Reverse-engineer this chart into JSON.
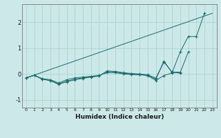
{
  "xlabel": "Humidex (Indice chaleur)",
  "bg_color": "#cce8e8",
  "line_color": "#1a6b6b",
  "grid_color": "#aad4d4",
  "xlim": [
    -0.5,
    23.5
  ],
  "ylim": [
    -1.3,
    2.7
  ],
  "xticks": [
    0,
    1,
    2,
    3,
    4,
    5,
    6,
    7,
    8,
    9,
    10,
    11,
    12,
    13,
    14,
    15,
    16,
    17,
    18,
    19,
    20,
    21,
    22,
    23
  ],
  "yticks": [
    -1,
    0,
    1,
    2
  ],
  "line1_x": [
    0,
    1,
    2,
    3,
    4,
    5,
    6,
    7,
    8,
    9,
    10,
    11,
    12,
    13,
    14,
    15,
    16,
    17,
    18,
    19,
    20,
    21,
    22
  ],
  "line1_y": [
    -0.15,
    -0.05,
    -0.18,
    -0.22,
    -0.35,
    -0.22,
    -0.15,
    -0.12,
    -0.09,
    -0.05,
    0.05,
    0.05,
    0.0,
    -0.02,
    -0.03,
    -0.06,
    -0.25,
    -0.06,
    0.04,
    0.85,
    1.45,
    1.45,
    2.35
  ],
  "line2_x": [
    0,
    1,
    2,
    3,
    4,
    5,
    6,
    7,
    8,
    9,
    10,
    11,
    12,
    13,
    14,
    15,
    16,
    17,
    18,
    19,
    20
  ],
  "line2_y": [
    -0.15,
    -0.05,
    -0.2,
    -0.25,
    -0.38,
    -0.28,
    -0.2,
    -0.15,
    -0.1,
    -0.07,
    0.1,
    0.08,
    0.03,
    0.0,
    -0.02,
    -0.05,
    -0.2,
    0.5,
    0.06,
    0.04,
    0.85
  ],
  "line3_x": [
    0,
    1,
    2,
    3,
    4,
    5,
    6,
    7,
    8,
    9,
    10,
    11,
    12,
    13,
    14,
    15,
    16,
    17,
    18,
    19
  ],
  "line3_y": [
    -0.15,
    -0.05,
    -0.2,
    -0.26,
    -0.4,
    -0.3,
    -0.22,
    -0.17,
    -0.12,
    -0.08,
    0.12,
    0.1,
    0.05,
    0.02,
    0.0,
    -0.03,
    -0.16,
    0.46,
    0.08,
    0.07
  ],
  "line4_x": [
    0,
    23
  ],
  "line4_y": [
    -0.15,
    2.35
  ]
}
